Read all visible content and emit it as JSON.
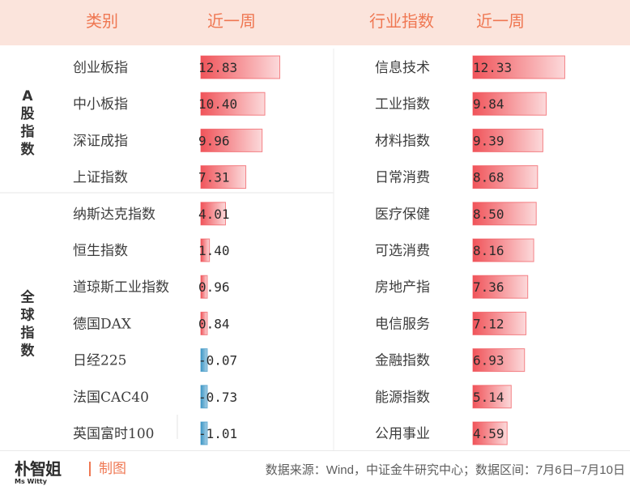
{
  "header": {
    "col_category": "类别",
    "col_week_left": "近一周",
    "col_industry": "行业指数",
    "col_week_right": "近一周"
  },
  "chart_data": [
    {
      "type": "bar",
      "groups": [
        {
          "label": "A股指数",
          "count": 4
        },
        {
          "label": "全球指数",
          "count": 7
        }
      ],
      "categories": [
        "创业板指",
        "中小板指",
        "深证成指",
        "上证指数",
        "纳斯达克指数",
        "恒生指数",
        "道琼斯工业指数",
        "德国DAX",
        "日经225",
        "法国CAC40",
        "英国富时100"
      ],
      "values": [
        12.83,
        10.4,
        9.96,
        7.31,
        4.01,
        1.4,
        0.96,
        0.84,
        -0.07,
        -0.73,
        -1.01
      ],
      "labels": [
        "12.83",
        "10.40",
        "9.96",
        "7.31",
        "4.01",
        "1.40",
        "0.96",
        "0.84",
        "-0.07",
        "-0.73",
        "-1.01"
      ],
      "xlabel": "",
      "ylabel": "",
      "colors": {
        "positive": "#f0545a",
        "negative": "#3e97c6"
      }
    },
    {
      "type": "bar",
      "categories": [
        "信息技术",
        "工业指数",
        "材料指数",
        "日常消费",
        "医疗保健",
        "可选消费",
        "房地产指",
        "电信服务",
        "金融指数",
        "能源指数",
        "公用事业"
      ],
      "values": [
        12.33,
        9.84,
        9.39,
        8.68,
        8.5,
        8.16,
        7.36,
        7.12,
        6.93,
        5.14,
        4.59
      ],
      "labels": [
        "12.33",
        "9.84",
        "9.39",
        "8.68",
        "8.50",
        "8.16",
        "7.36",
        "7.12",
        "6.93",
        "5.14",
        "4.59"
      ],
      "xlabel": "",
      "ylabel": "",
      "colors": {
        "positive": "#f0545a"
      }
    }
  ],
  "footer": {
    "logo_main": "朴智姐",
    "logo_sub": "Ms Witty",
    "credit": "制图",
    "source": "数据来源：Wind，中证金牛研究中心；数据区间：7月6日–7月10日"
  }
}
